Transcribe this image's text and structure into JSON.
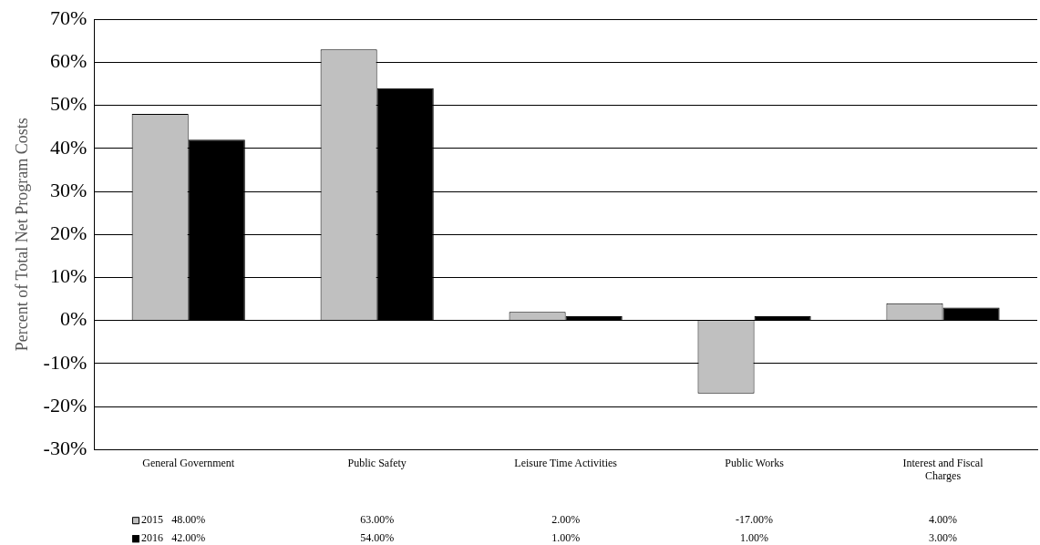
{
  "chart_data": {
    "type": "bar",
    "ylabel": "Percent of Total Net Program Costs",
    "categories": [
      "General Government",
      "Public Safety",
      "Leisure Time Activities",
      "Public Works",
      "Interest and Fiscal Charges"
    ],
    "series": [
      {
        "name": "2015",
        "color": "#c0c0c0",
        "values": [
          48,
          63,
          2,
          -17,
          4
        ],
        "value_labels": [
          "48.00%",
          "63.00%",
          "2.00%",
          "-17.00%",
          "4.00%"
        ]
      },
      {
        "name": "2016",
        "color": "#000000",
        "values": [
          42,
          54,
          1,
          1,
          3
        ],
        "value_labels": [
          "42.00%",
          "54.00%",
          "1.00%",
          "1.00%",
          "3.00%"
        ]
      }
    ],
    "ylim": [
      -30,
      70
    ],
    "yticks": [
      {
        "value": -30,
        "label": "-30%"
      },
      {
        "value": -20,
        "label": "-20%"
      },
      {
        "value": -10,
        "label": "-10%"
      },
      {
        "value": 0,
        "label": "0%"
      },
      {
        "value": 10,
        "label": "10%"
      },
      {
        "value": 20,
        "label": "20%"
      },
      {
        "value": 30,
        "label": "30%"
      },
      {
        "value": 40,
        "label": "40%"
      },
      {
        "value": 50,
        "label": "50%"
      },
      {
        "value": 60,
        "label": "60%"
      },
      {
        "value": 70,
        "label": "70%"
      }
    ],
    "grid": "y",
    "legend": "bottom"
  }
}
